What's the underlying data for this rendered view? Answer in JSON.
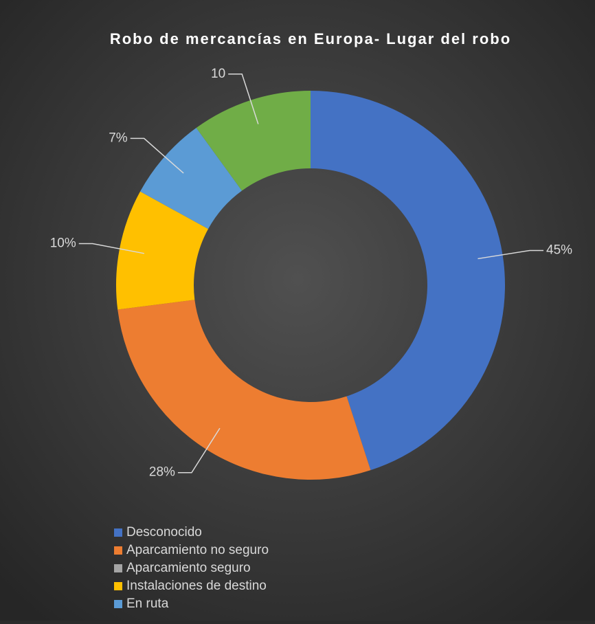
{
  "chart_data": {
    "type": "donut",
    "title": "Robo de mercancías en Europa- Lugar del robo",
    "categories": [
      "Desconocido",
      "Aparcamiento no seguro",
      "Aparcamiento seguro",
      "Instalaciones de destino",
      "En ruta",
      null
    ],
    "values": [
      45,
      28,
      0,
      10,
      7,
      10
    ],
    "value_labels": [
      "45%",
      "28%",
      null,
      "10%",
      "7%",
      "10"
    ],
    "colors": [
      "#4472c4",
      "#ed7d31",
      "#a5a5a5",
      "#ffc000",
      "#5b9bd5",
      "#70ad47"
    ],
    "legend": "bottom-left"
  }
}
